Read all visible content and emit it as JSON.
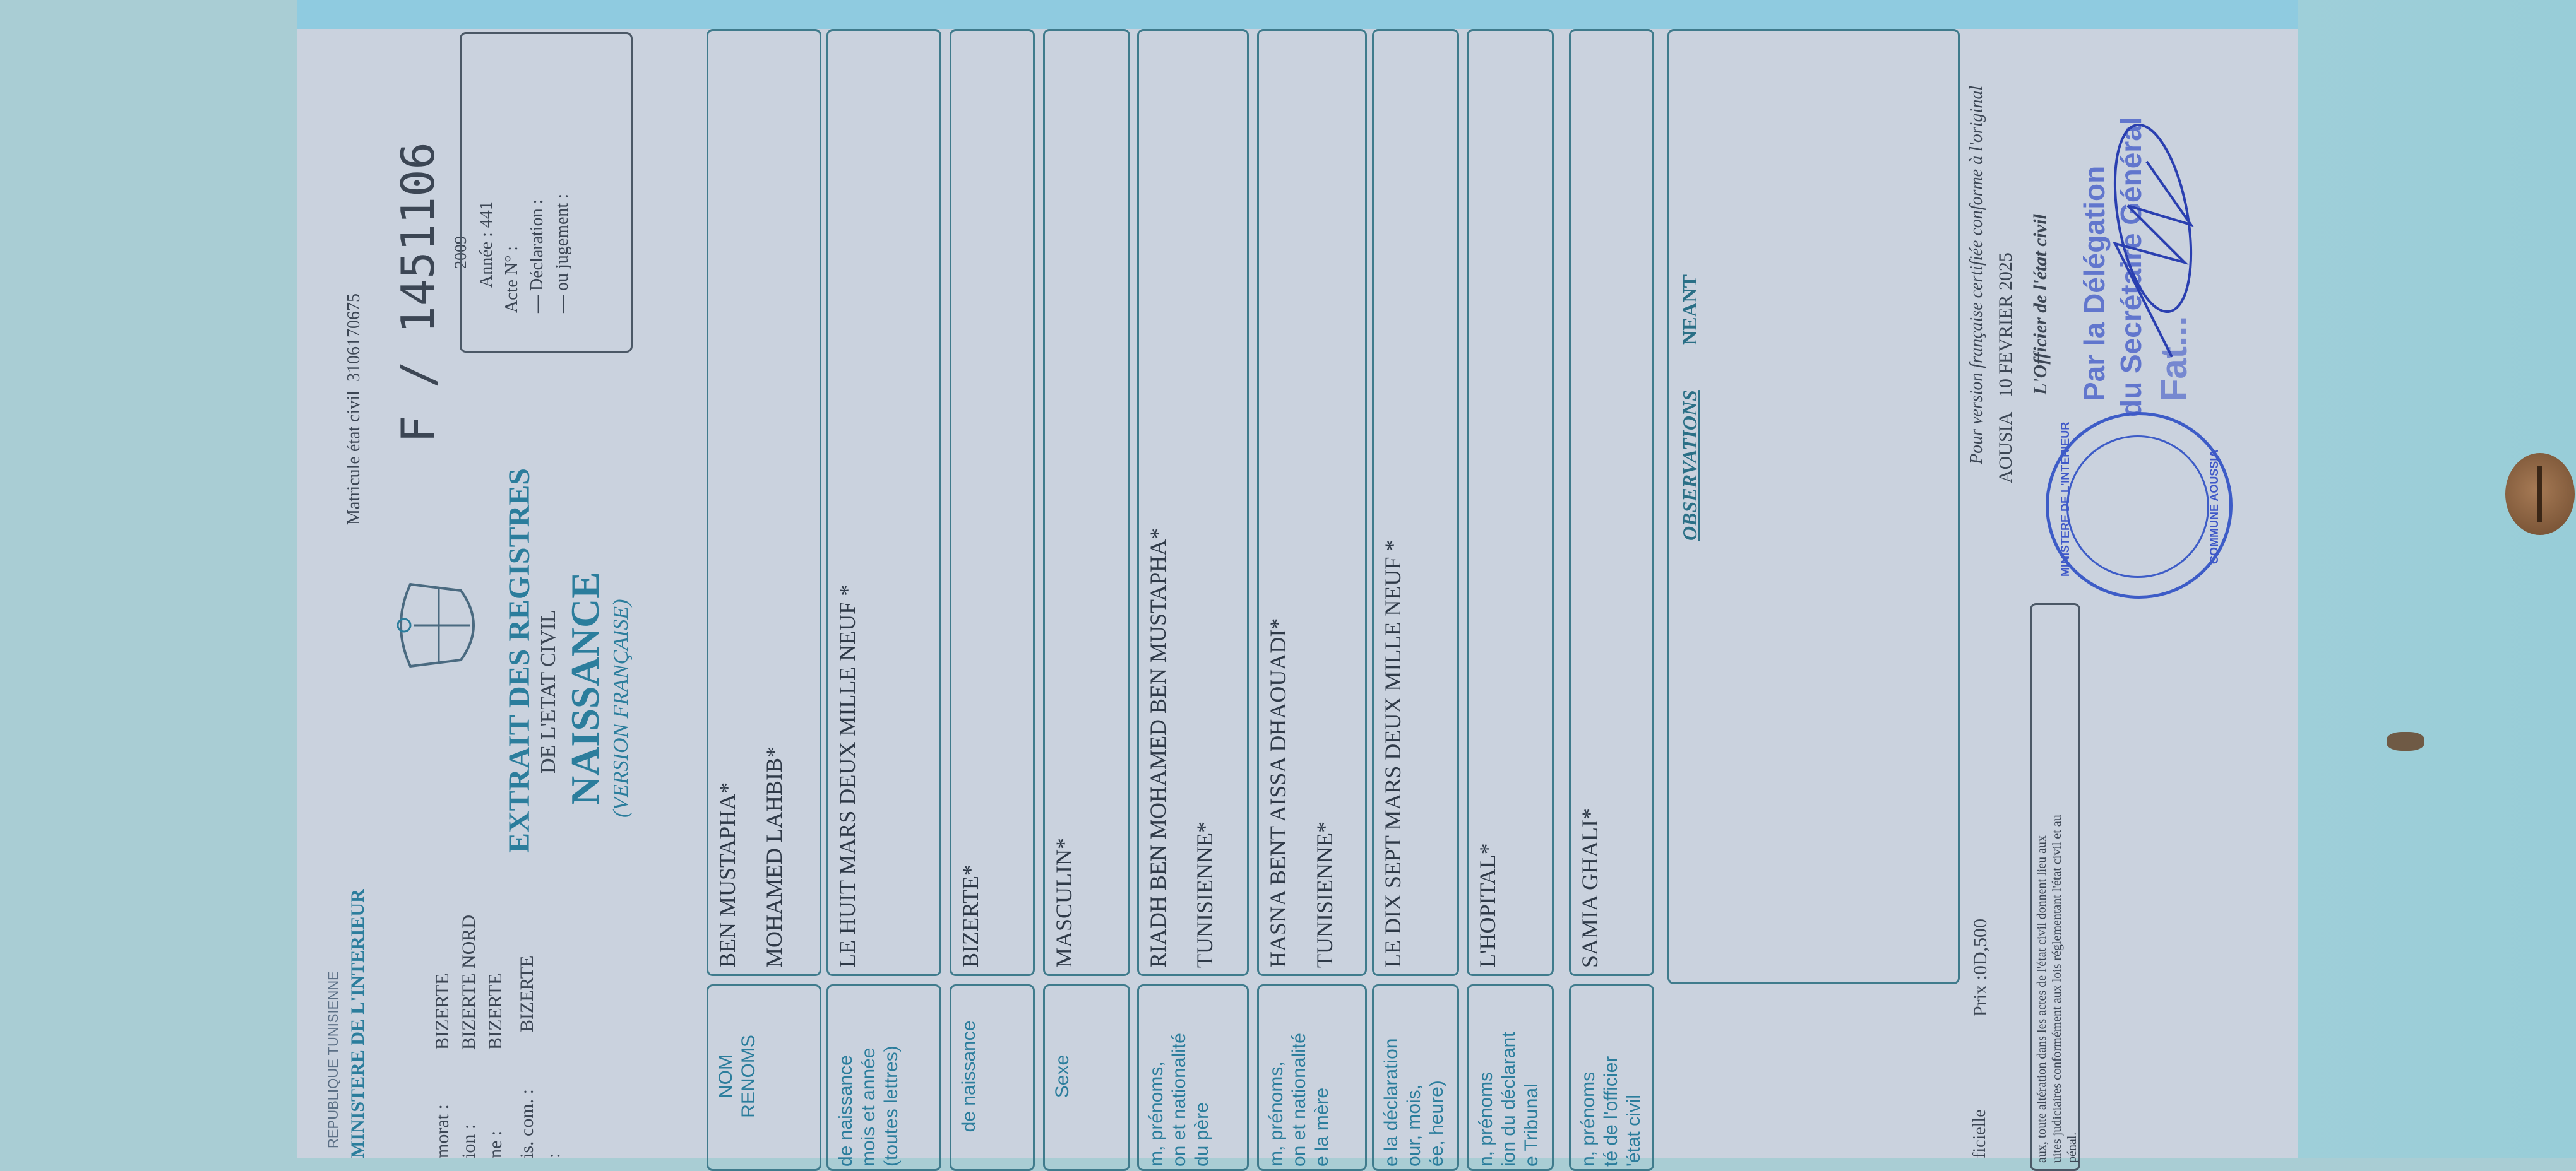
{
  "header": {
    "republic": "REPUBLIQUE TUNISIENNE",
    "ministry": "MINISTERE DE L'INTERIEUR",
    "admin_lines": [
      {
        "label": "morat :",
        "value": "BIZERTE"
      },
      {
        "label": "ion :",
        "value": "BIZERTE NORD"
      },
      {
        "label": "ne :",
        "value": "BIZERTE"
      },
      {
        "label": "is. com. :",
        "value": "BIZERTE"
      },
      {
        "label": ":",
        "value": ""
      }
    ],
    "title": "EXTRAIT DES REGISTRES",
    "subtitle": "DE L'ETAT CIVIL",
    "doc_type": "NAISSANCE",
    "version": "(VERSION FRANÇAISE)",
    "matricule_label": "Matricule état civil",
    "matricule": "3106170675",
    "serial_prefix": "F /",
    "serial": "1451106",
    "year_struck": "2009"
  },
  "acte_box": {
    "annee": "Année : 441",
    "acte": "Acte N° :",
    "declaration": "— Déclaration :",
    "jugement": "— ou jugement :"
  },
  "rows": [
    {
      "label": [
        "NOM",
        "RENOMS"
      ],
      "values": [
        "BEN MUSTAPHA*",
        "MOHAMED LAHBIB*"
      ]
    },
    {
      "label": [
        "de naissance",
        "mois et année",
        "(toutes lettres)"
      ],
      "values": [
        "LE HUIT MARS  DEUX MILLE NEUF *"
      ]
    },
    {
      "label": [
        "de naissance"
      ],
      "values": [
        "BIZERTE*"
      ]
    },
    {
      "label": [
        "Sexe"
      ],
      "values": [
        "MASCULIN*"
      ]
    },
    {
      "label": [
        "m, prénoms,",
        "on et nationalité",
        "du père"
      ],
      "values": [
        "RIADH BEN MOHAMED BEN MUSTAPHA*",
        "TUNISIENNE*"
      ]
    },
    {
      "label": [
        "m, prénoms,",
        "on et nationalité",
        "e la mère"
      ],
      "values": [
        "HASNA BENT AISSA DHAOUADI*",
        "TUNISIENNE*"
      ]
    },
    {
      "label": [
        "e la déclaration",
        "our, mois,",
        "ée, heure)"
      ],
      "values": [
        "LE DIX SEPT MARS  DEUX MILLE NEUF *"
      ]
    },
    {
      "label": [
        "n, prénoms",
        "ion du déclarant",
        "e Tribunal"
      ],
      "values": [
        "L'HOPITAL*"
      ]
    },
    {
      "label": [
        "n, prénoms",
        "té de l'officier",
        "'état civil"
      ],
      "values": [
        "SAMIA GHALI*"
      ]
    }
  ],
  "observations": {
    "label": "OBSERVATIONS",
    "overprint": "NEANT"
  },
  "footer": {
    "officielle": "ficielle",
    "price": "Prix :0D,500",
    "certified": "Pour version française certifiée conforme à l'original",
    "place": "AOUSIA",
    "date": "10  FEVRIER 2025",
    "officer": "L'Officier de l'état civil",
    "warning": [
      "aux, toute altération dans les actes de l'état civil donnent lieu aux",
      "uites judiciaires conformément aux lois réglementant l'état civil et au",
      "pénal."
    ]
  },
  "stamps": {
    "round_top": "MINISTERE DE L'INTERIEUR",
    "round_bottom": "COMMUNE AOUSSIA",
    "delegation_1": "Par la Délégation",
    "delegation_2": "du Secrétaire Général",
    "delegation_3": "Fat..."
  },
  "colors": {
    "paper": "#cad2de",
    "accent_teal": "#2b7d9c",
    "stamp_blue": "#3f58c8",
    "background": "#a9cdd4"
  }
}
